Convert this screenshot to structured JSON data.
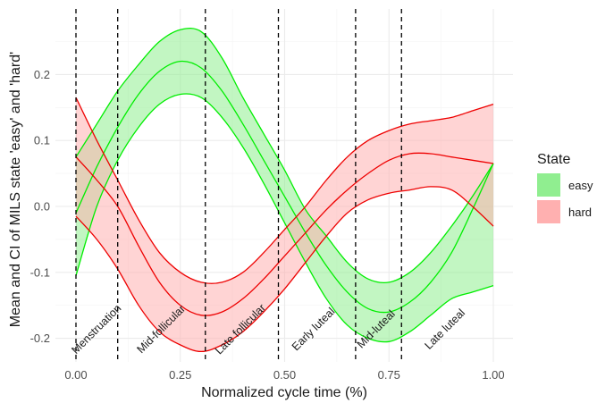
{
  "chart_data": {
    "type": "area",
    "title": "",
    "xlabel": "Normalized cycle time (%)",
    "ylabel": "Mean and CI of MILS state 'easy' and 'hard'",
    "xlim": [
      0.0,
      1.0
    ],
    "ylim": [
      -0.235,
      0.27
    ],
    "grid": true,
    "xticks": [
      0.0,
      0.25,
      0.5,
      0.75,
      1.0
    ],
    "xtick_labels": [
      "0.00",
      "0.25",
      "0.50",
      "0.75",
      "1.00"
    ],
    "yticks": [
      -0.2,
      -0.1,
      0.0,
      0.1,
      0.2
    ],
    "ytick_labels": [
      "-0.2",
      "-0.1",
      "0.0",
      "0.1",
      "0.2"
    ],
    "legend": {
      "title": "State",
      "placement": "right",
      "entries": [
        "easy",
        "hard"
      ]
    },
    "x": [
      0.0,
      0.05,
      0.1,
      0.15,
      0.2,
      0.25,
      0.3,
      0.35,
      0.4,
      0.45,
      0.5,
      0.55,
      0.6,
      0.65,
      0.7,
      0.75,
      0.8,
      0.85,
      0.9,
      0.95,
      1.0
    ],
    "series": [
      {
        "name": "easy",
        "color": "#00ee00",
        "fill": "#90ee90",
        "mean": [
          -0.01,
          0.06,
          0.12,
          0.17,
          0.205,
          0.22,
          0.21,
          0.175,
          0.125,
          0.07,
          0.015,
          -0.04,
          -0.09,
          -0.13,
          -0.155,
          -0.16,
          -0.145,
          -0.115,
          -0.07,
          -0.005,
          0.065
        ],
        "lower": [
          -0.105,
          0.0,
          0.07,
          0.12,
          0.155,
          0.17,
          0.165,
          0.135,
          0.09,
          0.035,
          -0.025,
          -0.085,
          -0.14,
          -0.18,
          -0.2,
          -0.205,
          -0.19,
          -0.165,
          -0.14,
          -0.13,
          -0.12
        ],
        "upper": [
          0.075,
          0.125,
          0.175,
          0.215,
          0.25,
          0.268,
          0.265,
          0.225,
          0.165,
          0.11,
          0.055,
          -0.005,
          -0.045,
          -0.085,
          -0.11,
          -0.115,
          -0.1,
          -0.07,
          -0.03,
          0.015,
          0.065
        ]
      },
      {
        "name": "hard",
        "color": "#ee0000",
        "fill": "#ffb0b0",
        "mean": [
          0.075,
          0.04,
          0.0,
          -0.06,
          -0.115,
          -0.15,
          -0.165,
          -0.16,
          -0.14,
          -0.11,
          -0.075,
          -0.04,
          -0.005,
          0.025,
          0.05,
          0.07,
          0.08,
          0.08,
          0.075,
          0.07,
          0.065
        ],
        "lower": [
          -0.015,
          -0.05,
          -0.095,
          -0.15,
          -0.19,
          -0.21,
          -0.22,
          -0.21,
          -0.19,
          -0.16,
          -0.125,
          -0.085,
          -0.045,
          -0.01,
          0.01,
          0.02,
          0.025,
          0.03,
          0.025,
          0.0,
          -0.03
        ],
        "upper": [
          0.165,
          0.1,
          0.04,
          -0.02,
          -0.07,
          -0.1,
          -0.115,
          -0.115,
          -0.1,
          -0.07,
          -0.035,
          0.0,
          0.04,
          0.075,
          0.1,
          0.115,
          0.125,
          0.13,
          0.135,
          0.145,
          0.155
        ]
      }
    ],
    "vlines": [
      0.0,
      0.1,
      0.31,
      0.485,
      0.67,
      0.78
    ],
    "annotations": [
      {
        "label": "Menstruation",
        "x": 0.055,
        "y": -0.19
      },
      {
        "label": "Mid-follicular",
        "x": 0.21,
        "y": -0.19
      },
      {
        "label": "Late follicular",
        "x": 0.4,
        "y": -0.19
      },
      {
        "label": "Early luteal",
        "x": 0.575,
        "y": -0.19
      },
      {
        "label": "Mid-luteal",
        "x": 0.725,
        "y": -0.19
      },
      {
        "label": "Late luteal",
        "x": 0.89,
        "y": -0.19
      }
    ]
  }
}
